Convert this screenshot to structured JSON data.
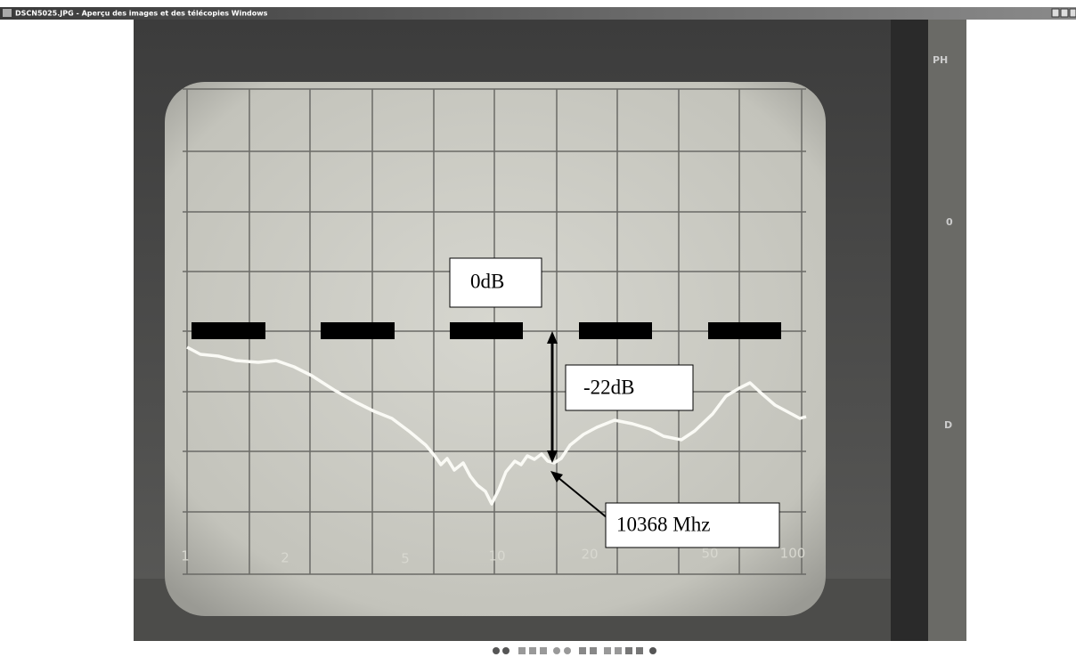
{
  "window": {
    "title": "DSCN5025.JPG - Aperçu des images et des télécopies Windows"
  },
  "annotations": {
    "reference": "0dB",
    "attenuation": "-22dB",
    "frequency": "10368 Mhz"
  },
  "scale_labels": [
    "1",
    "2",
    "5",
    "10",
    "20",
    "50",
    "100"
  ],
  "panel_labels": [
    "PH",
    "0",
    "D"
  ]
}
